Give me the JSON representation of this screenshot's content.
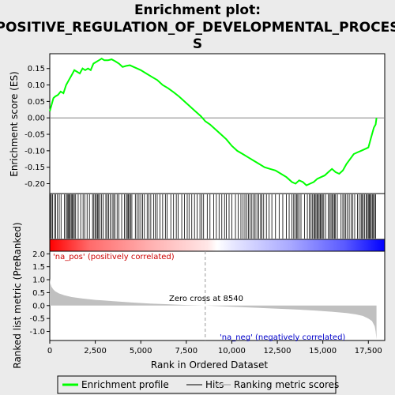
{
  "chart_data": {
    "type": "line",
    "title_line1": "Enrichment plot:",
    "title_line2": "POSITIVE_REGULATION_OF_DEVELOPMENTAL_PROCES",
    "title_line3": "S",
    "top_panel": {
      "ylabel": "Enrichment score (ES)",
      "ylim": [
        -0.23,
        0.195
      ],
      "yticks": [
        0.15,
        0.1,
        0.05,
        0.0,
        -0.05,
        -0.1,
        -0.15,
        -0.2
      ],
      "ytick_labels": [
        "0.15",
        "0.10",
        "0.05",
        "0.00",
        "-0.05",
        "-0.10",
        "-0.15",
        "-0.20"
      ],
      "series": [
        {
          "name": "Enrichment profile",
          "color": "#00ff00",
          "x": [
            0,
            100,
            200,
            300,
            450,
            600,
            750,
            900,
            1050,
            1200,
            1350,
            1500,
            1650,
            1800,
            1950,
            2100,
            2250,
            2400,
            2550,
            2700,
            2850,
            3000,
            3200,
            3400,
            3600,
            3800,
            4000,
            4200,
            4400,
            4600,
            4800,
            5000,
            5300,
            5600,
            5900,
            6200,
            6500,
            6800,
            7100,
            7400,
            7700,
            8000,
            8300,
            8540,
            8800,
            9100,
            9400,
            9700,
            10000,
            10300,
            10600,
            10900,
            11200,
            11500,
            11800,
            12100,
            12400,
            12700,
            13000,
            13300,
            13500,
            13700,
            13900,
            14100,
            14300,
            14500,
            14700,
            14900,
            15100,
            15300,
            15500,
            15700,
            15900,
            16100,
            16300,
            16500,
            16700,
            16900,
            17100,
            17300,
            17500,
            17650,
            17800,
            17900,
            17950
          ],
          "y": [
            0.02,
            0.04,
            0.06,
            0.065,
            0.07,
            0.08,
            0.075,
            0.1,
            0.115,
            0.13,
            0.145,
            0.14,
            0.135,
            0.15,
            0.145,
            0.15,
            0.145,
            0.165,
            0.17,
            0.175,
            0.18,
            0.175,
            0.175,
            0.178,
            0.172,
            0.165,
            0.155,
            0.158,
            0.16,
            0.155,
            0.15,
            0.145,
            0.135,
            0.125,
            0.115,
            0.1,
            0.09,
            0.078,
            0.065,
            0.05,
            0.035,
            0.02,
            0.005,
            -0.01,
            -0.02,
            -0.035,
            -0.05,
            -0.065,
            -0.085,
            -0.1,
            -0.11,
            -0.12,
            -0.13,
            -0.14,
            -0.15,
            -0.155,
            -0.16,
            -0.17,
            -0.18,
            -0.195,
            -0.2,
            -0.19,
            -0.195,
            -0.205,
            -0.2,
            -0.195,
            -0.185,
            -0.18,
            -0.175,
            -0.165,
            -0.155,
            -0.165,
            -0.17,
            -0.16,
            -0.14,
            -0.125,
            -0.11,
            -0.105,
            -0.1,
            -0.095,
            -0.09,
            -0.06,
            -0.03,
            -0.02,
            0.0
          ]
        }
      ]
    },
    "hits_panel": {
      "hit_positions": [
        30,
        90,
        150,
        260,
        330,
        420,
        520,
        620,
        800,
        900,
        960,
        1010,
        1060,
        1120,
        1180,
        1230,
        1290,
        1350,
        1420,
        1560,
        1700,
        1830,
        1920,
        2050,
        2180,
        2350,
        2420,
        2490,
        2560,
        2620,
        2680,
        2760,
        2850,
        2940,
        3080,
        3150,
        3230,
        3320,
        3430,
        3510,
        3580,
        3700,
        3800,
        3950,
        4100,
        4200,
        4260,
        4320,
        4380,
        4440,
        4510,
        4700,
        4800,
        4900,
        5000,
        5100,
        5200,
        5350,
        5450,
        5550,
        5700,
        5800,
        5900,
        6050,
        6200,
        6350,
        6450,
        6650,
        6800,
        6950,
        7050,
        7250,
        7400,
        7550,
        7650,
        7800,
        7950,
        8100,
        8250,
        8350,
        8450,
        8650,
        8800,
        9000,
        9150,
        9300,
        9450,
        9600,
        9700,
        9850,
        10000,
        10200,
        10350,
        10500,
        10620,
        10720,
        10820,
        10920,
        11000,
        11100,
        11200,
        11280,
        11380,
        11480,
        11580,
        11650,
        11750,
        11900,
        12050,
        12200,
        12400,
        12600,
        12800,
        13000,
        13150,
        13300,
        13400,
        13480,
        13560,
        13620,
        13700,
        13800,
        14000,
        14150,
        14250,
        14350,
        14420,
        14500,
        14560,
        14620,
        14680,
        14740,
        14800,
        14860,
        14920,
        14980,
        15050,
        15150,
        15300,
        15380,
        15450,
        15520,
        15580,
        15650,
        15700,
        15800,
        16000,
        16100,
        16180,
        16260,
        16350,
        16450,
        16560,
        16650,
        16750,
        16900,
        17000,
        17100,
        17150,
        17220,
        17300,
        17380,
        17440,
        17500,
        17560,
        17600,
        17660,
        17720,
        17780,
        17840,
        17900
      ]
    },
    "bottom_panel": {
      "ylabel": "Ranked list metric (PreRanked)",
      "ylim": [
        -1.35,
        2.1
      ],
      "yticks": [
        2.0,
        1.5,
        1.0,
        0.5,
        0.0,
        -0.5,
        -1.0
      ],
      "ytick_labels": [
        "2.0",
        "1.5",
        "1.0",
        "0.5",
        "0.0",
        "-0.5",
        "-1.0"
      ],
      "metric_x": [
        0,
        30,
        100,
        200,
        300,
        500,
        800,
        1200,
        1800,
        2500,
        3500,
        4500,
        5500,
        6500,
        7500,
        8540,
        9500,
        10500,
        11500,
        12500,
        13500,
        14500,
        15500,
        16300,
        16800,
        17200,
        17500,
        17700,
        17850,
        17900,
        17950
      ],
      "metric_y": [
        1.05,
        0.85,
        0.72,
        0.62,
        0.55,
        0.47,
        0.4,
        0.33,
        0.27,
        0.22,
        0.17,
        0.12,
        0.08,
        0.05,
        0.02,
        0.0,
        -0.03,
        -0.06,
        -0.09,
        -0.12,
        -0.15,
        -0.19,
        -0.24,
        -0.29,
        -0.34,
        -0.4,
        -0.5,
        -0.6,
        -0.8,
        -1.0,
        -1.3
      ],
      "pos_label": "'na_pos' (positively correlated)",
      "neg_label": "'na_neg' (negatively correlated)",
      "zero_cross_label": "Zero cross at 8540",
      "zero_cross": 8540
    },
    "xlabel": "Rank in Ordered Dataset",
    "xlim": [
      0,
      18400
    ],
    "xticks": [
      0,
      2500,
      5000,
      7500,
      10000,
      12500,
      15000,
      17500
    ],
    "xtick_labels": [
      "0",
      "2,500",
      "5,000",
      "7,500",
      "10,000",
      "12,500",
      "15,000",
      "17,500"
    ],
    "legend": [
      {
        "label": "Enrichment profile",
        "color": "#00ff00"
      },
      {
        "label": "Hits",
        "color": "#000000"
      },
      {
        "label": "Ranking metric scores",
        "color": "#c0c0c0"
      }
    ],
    "colors": {
      "profile": "#00ff00",
      "metric_fill": "#c0c0c0",
      "pos_label": "#cc0000",
      "neg_label": "#0000cc",
      "bar_red": "#ff0000",
      "bar_blue": "#0000ff"
    }
  }
}
